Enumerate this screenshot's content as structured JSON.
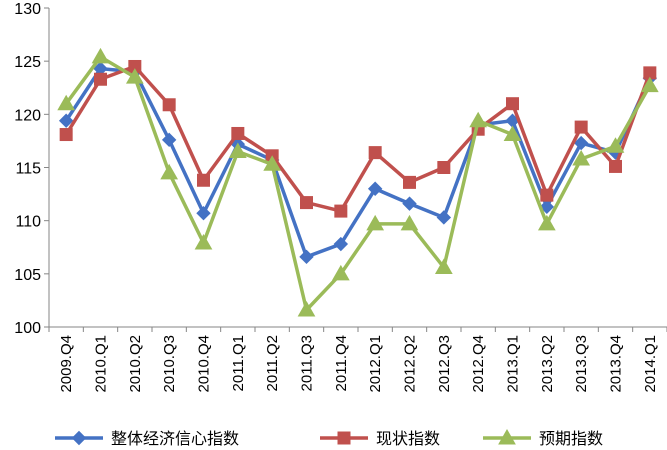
{
  "chart_data": {
    "type": "line",
    "categories": [
      "2009.Q4",
      "2010.Q1",
      "2010.Q2",
      "2010.Q3",
      "2010.Q4",
      "2011.Q1",
      "2011.Q2",
      "2011.Q3",
      "2011.Q4",
      "2012.Q1",
      "2012.Q2",
      "2012.Q3",
      "2012.Q4",
      "2013.Q1",
      "2013.Q2",
      "2013.Q3",
      "2013.Q4",
      "2014.Q1"
    ],
    "ylim": [
      100,
      130
    ],
    "yticks": [
      100,
      105,
      110,
      115,
      120,
      125,
      130
    ],
    "grid": false,
    "legend": "bottom",
    "series": [
      {
        "name": "整体经济信心指数",
        "color": "#4472c4",
        "marker": "diamond",
        "values": [
          119.4,
          124.3,
          124.0,
          117.6,
          110.7,
          117.2,
          115.7,
          106.6,
          107.8,
          113.0,
          111.6,
          110.3,
          119.0,
          119.4,
          111.3,
          117.3,
          116.4,
          123.4
        ]
      },
      {
        "name": "现状指数",
        "color": "#c0504d",
        "marker": "square",
        "values": [
          118.1,
          123.3,
          124.5,
          120.9,
          113.8,
          118.2,
          116.1,
          111.7,
          110.9,
          116.4,
          113.6,
          115.0,
          118.6,
          121.0,
          112.4,
          118.8,
          115.1,
          123.9
        ]
      },
      {
        "name": "预期指数",
        "color": "#9bbb59",
        "marker": "triangle",
        "values": [
          121.0,
          125.4,
          123.5,
          114.5,
          107.9,
          116.5,
          115.3,
          101.6,
          105.0,
          109.7,
          109.7,
          105.6,
          119.4,
          118.1,
          109.7,
          115.8,
          117.0,
          122.7
        ]
      }
    ]
  }
}
